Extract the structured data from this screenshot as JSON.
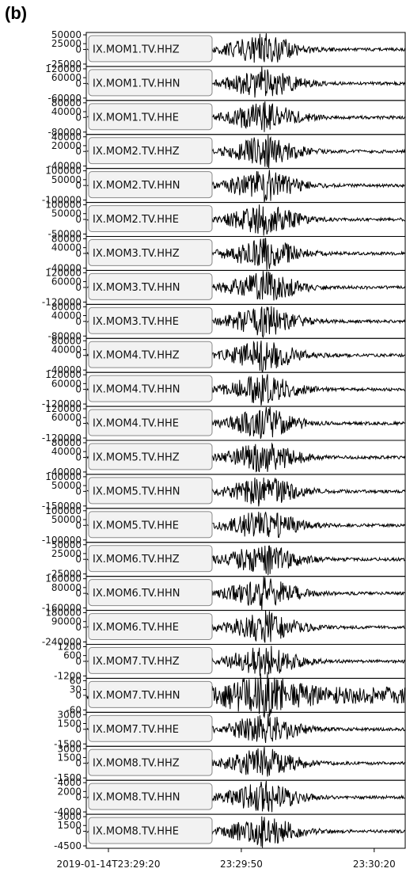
{
  "panel_label": "(b)",
  "chart_data": {
    "type": "line",
    "x_tick_labels": [
      "2019-01-14T23:29:20",
      "23:29:50",
      "23:30:20"
    ],
    "x_ticks_seconds": [
      0,
      30,
      60
    ],
    "x_range_seconds": [
      -5,
      67
    ],
    "event_onset_seconds": 35,
    "legend_placement": "left-inside-each-panel",
    "colors": {
      "trace": "#000000",
      "frame": "#000000",
      "label_box": "#f2f2f2",
      "label_border": "#888888"
    },
    "series": [
      {
        "name": "IX.MOM1.TV.HHZ",
        "y_tick_labels": [
          "50000",
          "25000",
          "0",
          "-25000"
        ]
      },
      {
        "name": "IX.MOM1.TV.HHN",
        "y_tick_labels": [
          "120000",
          "60000",
          "0",
          "-60000"
        ]
      },
      {
        "name": "IX.MOM1.TV.HHE",
        "y_tick_labels": [
          "80000",
          "40000",
          "0",
          "-80000"
        ]
      },
      {
        "name": "IX.MOM2.TV.HHZ",
        "y_tick_labels": [
          "40000",
          "20000",
          "0",
          "-40000"
        ]
      },
      {
        "name": "IX.MOM2.TV.HHN",
        "y_tick_labels": [
          "100000",
          "50000",
          "0",
          "-100000"
        ]
      },
      {
        "name": "IX.MOM2.TV.HHE",
        "y_tick_labels": [
          "100000",
          "50000",
          "0",
          "-50000"
        ]
      },
      {
        "name": "IX.MOM3.TV.HHZ",
        "y_tick_labels": [
          "80000",
          "40000",
          "0",
          "-40000"
        ]
      },
      {
        "name": "IX.MOM3.TV.HHN",
        "y_tick_labels": [
          "120000",
          "60000",
          "0",
          "-120000"
        ]
      },
      {
        "name": "IX.MOM3.TV.HHE",
        "y_tick_labels": [
          "80000",
          "40000",
          "0",
          "-80000"
        ]
      },
      {
        "name": "IX.MOM4.TV.HHZ",
        "y_tick_labels": [
          "80000",
          "40000",
          "0",
          "-40000"
        ]
      },
      {
        "name": "IX.MOM4.TV.HHN",
        "y_tick_labels": [
          "120000",
          "60000",
          "0",
          "-120000"
        ]
      },
      {
        "name": "IX.MOM4.TV.HHE",
        "y_tick_labels": [
          "120000",
          "60000",
          "0",
          "-120000"
        ]
      },
      {
        "name": "IX.MOM5.TV.HHZ",
        "y_tick_labels": [
          "80000",
          "40000",
          "0",
          "-40000"
        ]
      },
      {
        "name": "IX.MOM5.TV.HHN",
        "y_tick_labels": [
          "100000",
          "50000",
          "0",
          "-150000"
        ]
      },
      {
        "name": "IX.MOM5.TV.HHE",
        "y_tick_labels": [
          "100000",
          "50000",
          "0",
          "-100000"
        ]
      },
      {
        "name": "IX.MOM6.TV.HHZ",
        "y_tick_labels": [
          "50000",
          "25000",
          "0",
          "-25000"
        ]
      },
      {
        "name": "IX.MOM6.TV.HHN",
        "y_tick_labels": [
          "160000",
          "80000",
          "0",
          "-160000"
        ]
      },
      {
        "name": "IX.MOM6.TV.HHE",
        "y_tick_labels": [
          "180000",
          "90000",
          "0",
          "-240000"
        ]
      },
      {
        "name": "IX.MOM7.TV.HHZ",
        "y_tick_labels": [
          "1200",
          "600",
          "0",
          "-1200"
        ]
      },
      {
        "name": "IX.MOM7.TV.HHN",
        "y_tick_labels": [
          "60",
          "30",
          "0",
          "-60"
        ]
      },
      {
        "name": "IX.MOM7.TV.HHE",
        "y_tick_labels": [
          "3000",
          "1500",
          "0",
          "-1500"
        ]
      },
      {
        "name": "IX.MOM8.TV.HHZ",
        "y_tick_labels": [
          "3000",
          "1500",
          "0",
          "-1500"
        ]
      },
      {
        "name": "IX.MOM8.TV.HHN",
        "y_tick_labels": [
          "4000",
          "2000",
          "0",
          "-4000"
        ]
      },
      {
        "name": "IX.MOM8.TV.HHE",
        "y_tick_labels": [
          "3000",
          "1500",
          "0",
          "-4500"
        ]
      }
    ]
  }
}
